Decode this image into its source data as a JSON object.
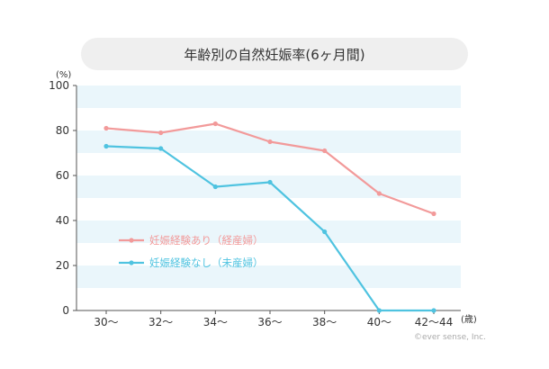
{
  "title": "年齢別の自然妊娠率(6ヶ月間)",
  "unit_label": "(%)",
  "x_unit_label": "(歳)",
  "copyright": "©ever sense, Inc.",
  "chart_data": {
    "type": "line",
    "title": "年齢別の自然妊娠率(6ヶ月間)",
    "ylabel": "(%)",
    "xlabel": "(歳)",
    "categories": [
      "30〜",
      "32〜",
      "34〜",
      "36〜",
      "38〜",
      "40〜",
      "42〜44"
    ],
    "y_ticks": [
      "0",
      "20",
      "40",
      "60",
      "80",
      "100"
    ],
    "ylim": [
      0,
      100
    ],
    "grid": "horizontal stripes",
    "legend_position": "lower-left inside plot",
    "series": [
      {
        "name": "妊娠経験あり（経産婦）",
        "color": "#f29a9a",
        "values": [
          81,
          79,
          83,
          75,
          71,
          52,
          43
        ]
      },
      {
        "name": "妊娠経験なし（未産婦）",
        "color": "#4fc3e0",
        "values": [
          73,
          72,
          55,
          57,
          35,
          0,
          0
        ]
      }
    ]
  }
}
